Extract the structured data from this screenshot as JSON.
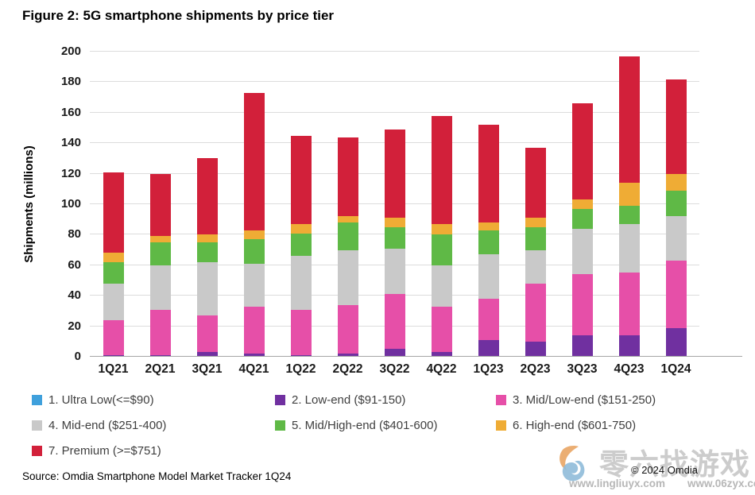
{
  "title": "Figure 2: 5G smartphone shipments by price tier",
  "source": "Source: Omdia Smartphone Model Market Tracker 1Q24",
  "copyright": "© 2024 Omdia",
  "watermark": {
    "text": "零六找游戏",
    "url1": "www.lingliuyx.com",
    "url2": "www.06zyx.com"
  },
  "chart_data": {
    "type": "bar",
    "stacked": true,
    "title": "Figure 2: 5G smartphone shipments by price tier",
    "xlabel": "",
    "ylabel": "Shipments (millions)",
    "ylim": [
      0,
      200
    ],
    "ytick_step": 20,
    "grid": true,
    "legend_position": "bottom",
    "categories": [
      "1Q21",
      "2Q21",
      "3Q21",
      "4Q21",
      "1Q22",
      "2Q22",
      "3Q22",
      "4Q22",
      "1Q23",
      "2Q23",
      "3Q23",
      "4Q23",
      "1Q24"
    ],
    "series": [
      {
        "name": "1. Ultra Low(<=$90)",
        "color": "#3FA0DC",
        "values": [
          0,
          0,
          0,
          0,
          0,
          0,
          0,
          0,
          0,
          0,
          0,
          0,
          0
        ]
      },
      {
        "name": "2. Low-end ($91-150)",
        "color": "#7030A0",
        "values": [
          1,
          1,
          3,
          2,
          1,
          2,
          5,
          3,
          11,
          10,
          14,
          14,
          19
        ]
      },
      {
        "name": "3. Mid/Low-end ($151-250)",
        "color": "#E64FA8",
        "values": [
          23,
          30,
          24,
          31,
          30,
          32,
          36,
          30,
          27,
          38,
          40,
          41,
          44
        ]
      },
      {
        "name": "4. Mid-end ($251-400)",
        "color": "#C9C9C9",
        "values": [
          24,
          29,
          35,
          28,
          35,
          36,
          30,
          27,
          29,
          22,
          30,
          32,
          29
        ]
      },
      {
        "name": "5. Mid/High-end ($401-600)",
        "color": "#5FB946",
        "values": [
          14,
          15,
          13,
          16,
          15,
          18,
          14,
          20,
          16,
          15,
          13,
          12,
          17
        ]
      },
      {
        "name": "6. High-end ($601-750)",
        "color": "#EFAC35",
        "values": [
          6,
          4,
          5,
          6,
          6,
          4,
          6,
          7,
          5,
          6,
          6,
          15,
          11
        ]
      },
      {
        "name": "7. Premium (>=$751)",
        "color": "#D2203A",
        "values": [
          53,
          41,
          50,
          90,
          58,
          52,
          58,
          71,
          64,
          46,
          63,
          83,
          62
        ]
      }
    ],
    "totals": [
      121,
      120,
      130,
      173,
      145,
      144,
      149,
      158,
      152,
      137,
      166,
      197,
      182
    ]
  },
  "legend": {
    "items": [
      {
        "label": "1. Ultra Low(<=$90)",
        "color": "#3FA0DC"
      },
      {
        "label": "2. Low-end ($91-150)",
        "color": "#7030A0"
      },
      {
        "label": "3. Mid/Low-end ($151-250)",
        "color": "#E64FA8"
      },
      {
        "label": "4. Mid-end ($251-400)",
        "color": "#C9C9C9"
      },
      {
        "label": "5. Mid/High-end ($401-600)",
        "color": "#5FB946"
      },
      {
        "label": "6. High-end ($601-750)",
        "color": "#EFAC35"
      },
      {
        "label": "7. Premium (>=$751)",
        "color": "#D2203A"
      }
    ]
  }
}
